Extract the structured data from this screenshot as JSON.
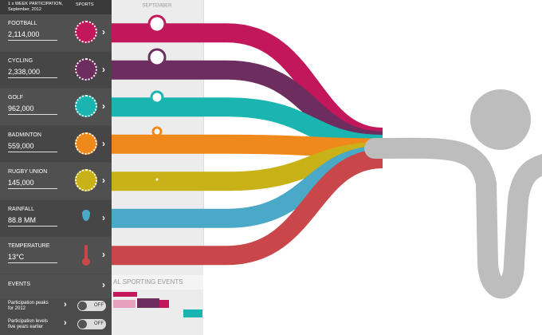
{
  "header": {
    "title": "1 x WEEK PARTICIPATION,",
    "subtitle": "September, 2012",
    "column": "SPORTS"
  },
  "timeline": {
    "month": "SEPTEMBER",
    "events_label": "AL SPORTING EVENTS"
  },
  "sports": [
    {
      "name": "FOOTBALL",
      "value": "2,114,000",
      "color": "#c2185b"
    },
    {
      "name": "CYCLING",
      "value": "2,338,000",
      "color": "#6d2d5f"
    },
    {
      "name": "GOLF",
      "value": "962,000",
      "color": "#1ab5b1"
    },
    {
      "name": "BADMINTON",
      "value": "559,000",
      "color": "#f0891b"
    },
    {
      "name": "RUGBY UNION",
      "value": "145,000",
      "color": "#c8b217"
    }
  ],
  "conditions": [
    {
      "name": "RAINFALL",
      "value": "88.8 MM",
      "color": "#4aa9c6"
    },
    {
      "name": "TEMPERATURE",
      "value": "13°C",
      "color": "#c9474a"
    }
  ],
  "events": "EVENTS",
  "toggles": [
    {
      "label": [
        "Participation peaks",
        "for 2012"
      ],
      "state": "OFF"
    },
    {
      "label": [
        "Participation levels",
        "five years earlier"
      ],
      "state": "OFF"
    }
  ]
}
